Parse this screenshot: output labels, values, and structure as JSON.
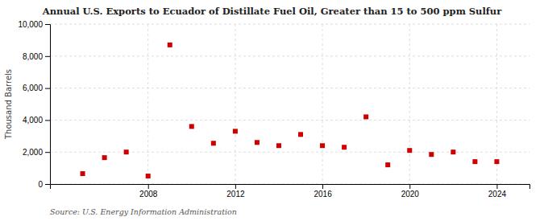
{
  "chart_data": {
    "type": "scatter",
    "title": "Annual U.S. Exports to Ecuador of Distillate Fuel Oil, Greater than 15 to 500 ppm Sulfur",
    "ylabel": "Thousand Barrels",
    "annotations": [
      "Source: U.S. Energy Information Administration"
    ],
    "x": [
      2005,
      2006,
      2007,
      2008,
      2009,
      2010,
      2011,
      2012,
      2013,
      2014,
      2015,
      2016,
      2017,
      2018,
      2019,
      2020,
      2021,
      2022,
      2023,
      2024
    ],
    "values": [
      650,
      1650,
      2000,
      500,
      8700,
      3600,
      2550,
      3300,
      2600,
      2400,
      3100,
      2400,
      2300,
      4200,
      1200,
      2100,
      1850,
      2000,
      1400,
      1400
    ],
    "color": "#cc0000",
    "marker": "square",
    "xlim": [
      2003.5,
      2025.5
    ],
    "xticks": [
      2008,
      2012,
      2016,
      2020,
      2024
    ],
    "ylim": [
      0,
      10000
    ],
    "yticks": [
      0,
      {
        "value": 2000,
        "label": "2,000"
      },
      {
        "value": 4000,
        "label": "4,000"
      },
      {
        "value": 6000,
        "label": "6,000"
      },
      {
        "value": 8000,
        "label": "8,000"
      },
      {
        "value": 10000,
        "label": "10,000"
      }
    ],
    "grid": true
  }
}
